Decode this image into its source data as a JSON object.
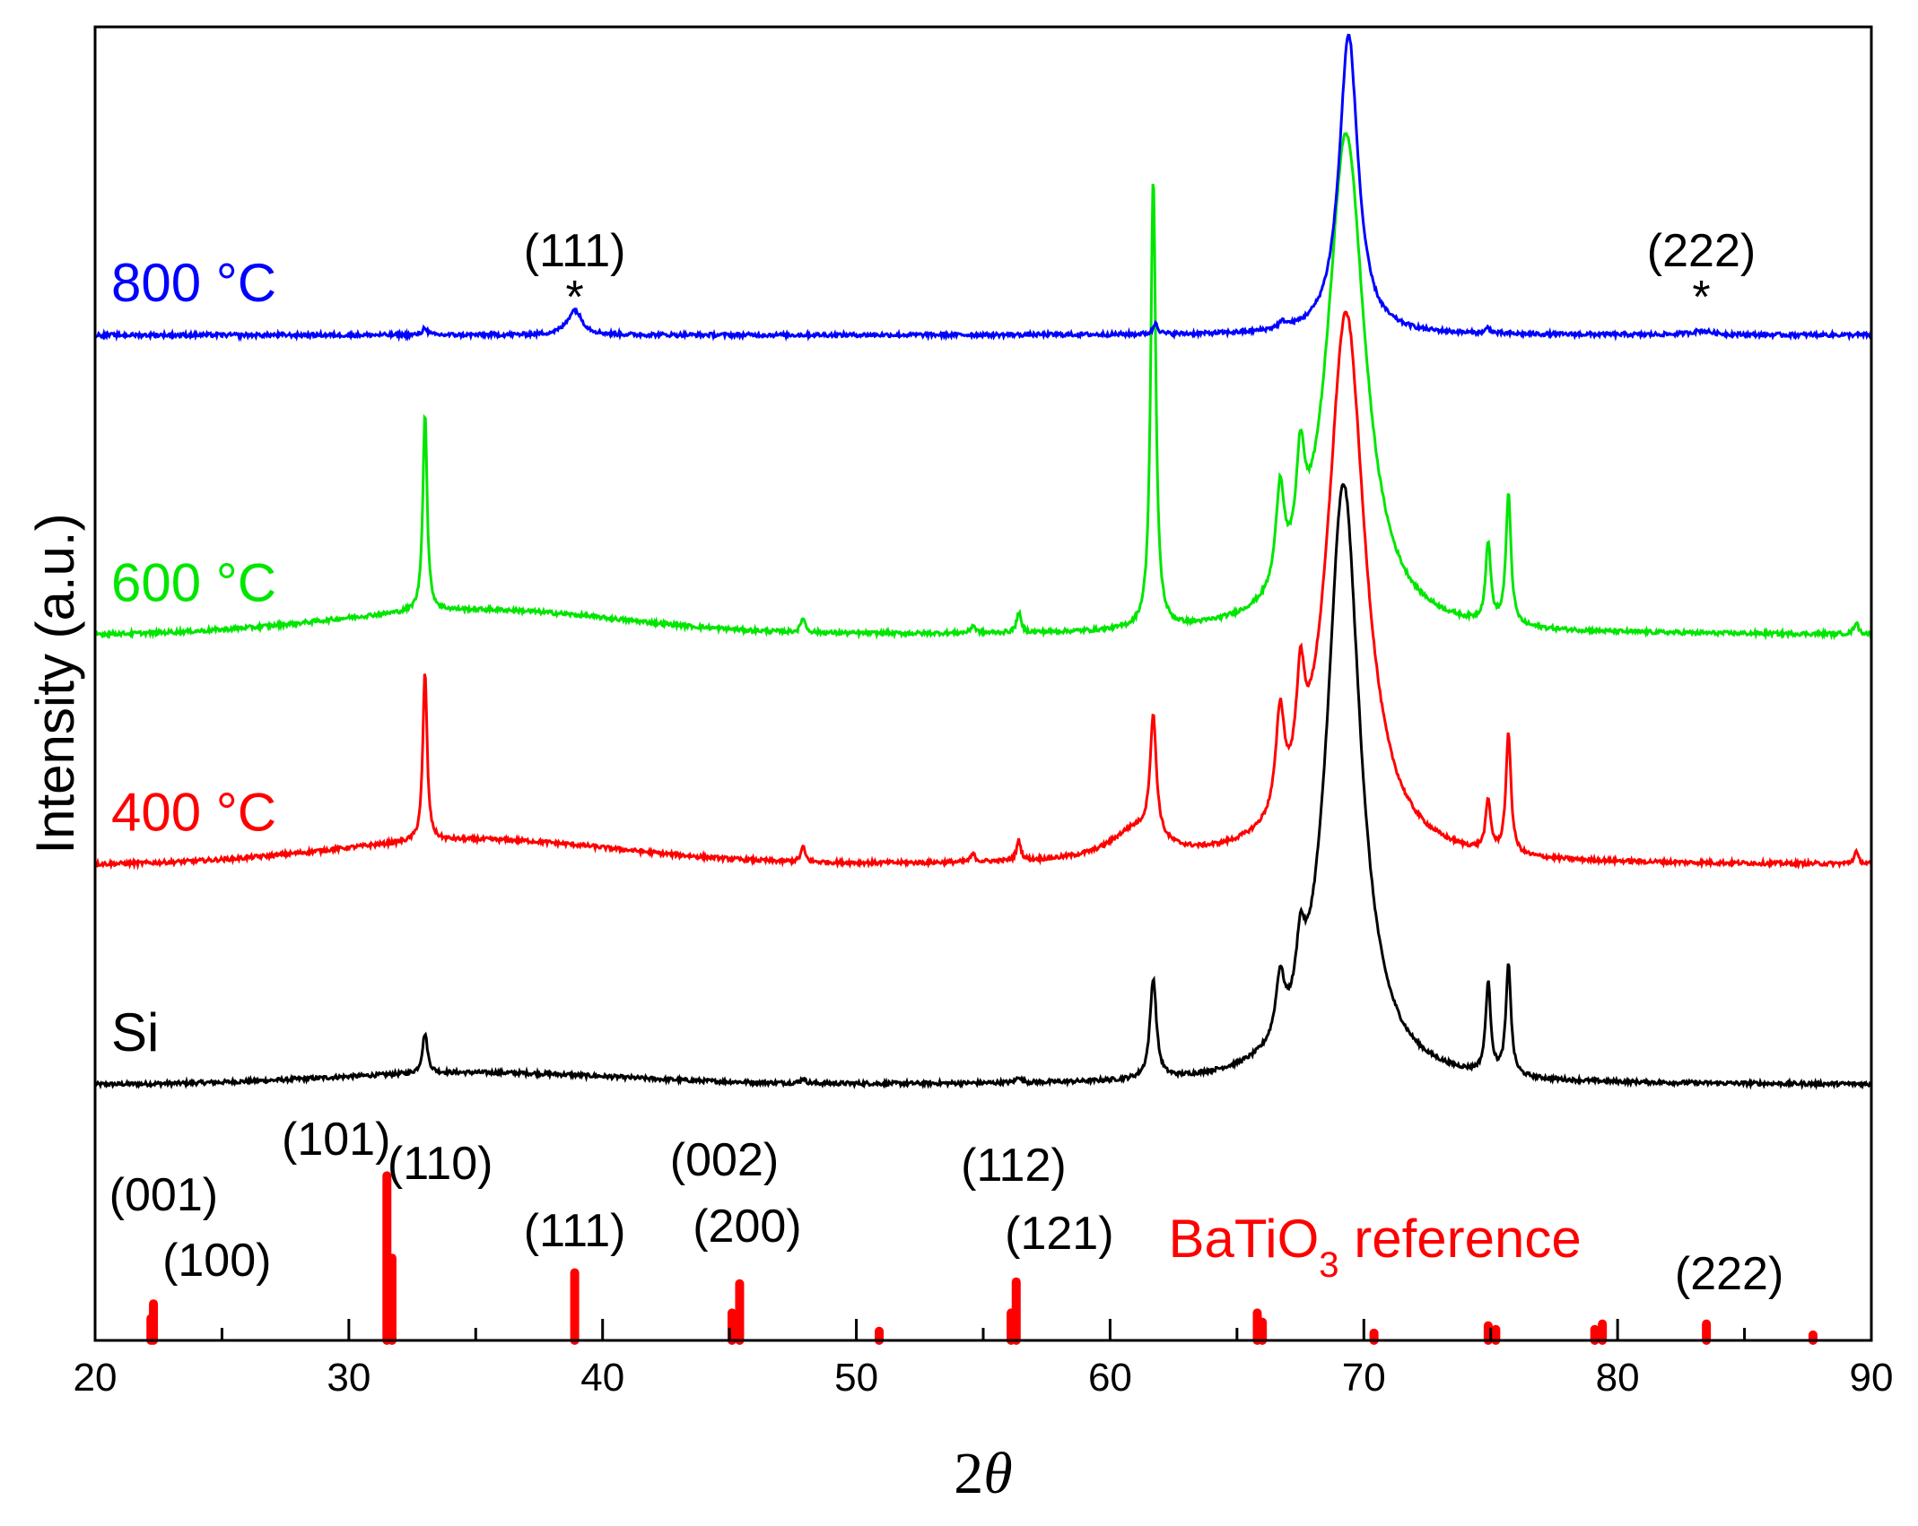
{
  "chart_data": {
    "type": "line",
    "title": "",
    "xlabel_prefix": "2",
    "xlabel_symbol": "θ",
    "ylabel": "Intensity (a.u.)",
    "xlim": [
      20,
      90
    ],
    "xticks": [
      20,
      30,
      40,
      50,
      60,
      70,
      80,
      90
    ],
    "tick_labels": [
      "20",
      "30",
      "40",
      "50",
      "60",
      "70",
      "80",
      "90"
    ],
    "y_ticks_shown": false,
    "colors": {
      "800 °C": "#0000ff",
      "600 °C": "#00e600",
      "400 °C": "#ff0000",
      "Si": "#000000",
      "reference": "#ff0000"
    },
    "series": [
      {
        "name": "Si",
        "label": "Si",
        "color": "#000000",
        "baseline": 0.0,
        "hump": {
          "center": 35,
          "width": 8,
          "height": 0.012
        },
        "peaks": [
          {
            "x": 33.0,
            "h": 0.04,
            "w": 0.12
          },
          {
            "x": 47.9,
            "h": 0.005,
            "w": 0.1
          },
          {
            "x": 56.4,
            "h": 0.006,
            "w": 0.1
          },
          {
            "x": 61.7,
            "h": 0.1,
            "w": 0.15
          },
          {
            "x": 66.7,
            "h": 0.06,
            "w": 0.2
          },
          {
            "x": 67.5,
            "h": 0.06,
            "w": 0.2
          },
          {
            "x": 69.2,
            "h": 0.6,
            "w": 0.8
          },
          {
            "x": 74.9,
            "h": 0.09,
            "w": 0.12
          },
          {
            "x": 75.7,
            "h": 0.11,
            "w": 0.12
          }
        ]
      },
      {
        "name": "400 °C",
        "label": "400 °C",
        "color": "#ff0000",
        "baseline": 0.22,
        "hump": {
          "center": 35,
          "width": 8,
          "height": 0.025
        },
        "peaks": [
          {
            "x": 33.0,
            "h": 0.17,
            "w": 0.1
          },
          {
            "x": 47.9,
            "h": 0.015,
            "w": 0.1
          },
          {
            "x": 54.6,
            "h": 0.008,
            "w": 0.1
          },
          {
            "x": 56.4,
            "h": 0.02,
            "w": 0.1
          },
          {
            "x": 61.0,
            "h": 0.03,
            "w": 1.2
          },
          {
            "x": 61.7,
            "h": 0.12,
            "w": 0.15
          },
          {
            "x": 66.7,
            "h": 0.1,
            "w": 0.2
          },
          {
            "x": 67.5,
            "h": 0.1,
            "w": 0.2
          },
          {
            "x": 69.3,
            "h": 0.55,
            "w": 0.9
          },
          {
            "x": 74.9,
            "h": 0.05,
            "w": 0.12
          },
          {
            "x": 75.7,
            "h": 0.12,
            "w": 0.12
          },
          {
            "x": 89.4,
            "h": 0.012,
            "w": 0.1
          }
        ]
      },
      {
        "name": "600 °C",
        "label": "600 °C",
        "color": "#00e600",
        "baseline": 0.45,
        "hump": {
          "center": 35,
          "width": 8,
          "height": 0.025
        },
        "peaks": [
          {
            "x": 33.0,
            "h": 0.2,
            "w": 0.1
          },
          {
            "x": 47.9,
            "h": 0.015,
            "w": 0.1
          },
          {
            "x": 54.6,
            "h": 0.008,
            "w": 0.1
          },
          {
            "x": 56.4,
            "h": 0.02,
            "w": 0.1
          },
          {
            "x": 61.7,
            "h": 0.45,
            "w": 0.12
          },
          {
            "x": 66.7,
            "h": 0.1,
            "w": 0.2
          },
          {
            "x": 67.5,
            "h": 0.1,
            "w": 0.2
          },
          {
            "x": 69.3,
            "h": 0.5,
            "w": 0.9
          },
          {
            "x": 74.9,
            "h": 0.08,
            "w": 0.12
          },
          {
            "x": 75.7,
            "h": 0.13,
            "w": 0.12
          },
          {
            "x": 89.4,
            "h": 0.012,
            "w": 0.1
          }
        ]
      },
      {
        "name": "800 °C",
        "label": "800 °C",
        "color": "#0000ff",
        "baseline": 0.75,
        "hump": {
          "center": 35,
          "width": 8,
          "height": 0.0
        },
        "peaks": [
          {
            "x": 33.0,
            "h": 0.008,
            "w": 0.1
          },
          {
            "x": 38.9,
            "h": 0.025,
            "w": 0.35
          },
          {
            "x": 61.8,
            "h": 0.012,
            "w": 0.1
          },
          {
            "x": 66.8,
            "h": 0.006,
            "w": 0.2
          },
          {
            "x": 69.4,
            "h": 0.3,
            "w": 0.45
          },
          {
            "x": 74.9,
            "h": 0.006,
            "w": 0.1
          },
          {
            "x": 83.3,
            "h": 0.004,
            "w": 0.5
          }
        ]
      }
    ],
    "annotations": [
      {
        "series": "800 °C",
        "x": 38.9,
        "label": "(111)",
        "marker": "*"
      },
      {
        "series": "800 °C",
        "x": 83.3,
        "label": "(222)",
        "marker": "*"
      }
    ],
    "reference": {
      "name": "BaTiO3 reference",
      "label_main": "BaTiO",
      "label_sub": "3",
      "label_tail": " reference",
      "color": "#ff0000",
      "sticks": [
        {
          "x": 22.2,
          "h": 0.12
        },
        {
          "x": 22.3,
          "h": 0.2
        },
        {
          "x": 31.5,
          "h": 0.9
        },
        {
          "x": 31.7,
          "h": 0.45
        },
        {
          "x": 38.9,
          "h": 0.37
        },
        {
          "x": 45.1,
          "h": 0.15
        },
        {
          "x": 45.4,
          "h": 0.31
        },
        {
          "x": 50.9,
          "h": 0.05
        },
        {
          "x": 56.1,
          "h": 0.15
        },
        {
          "x": 56.3,
          "h": 0.32
        },
        {
          "x": 65.8,
          "h": 0.15
        },
        {
          "x": 66.0,
          "h": 0.1
        },
        {
          "x": 70.4,
          "h": 0.04
        },
        {
          "x": 74.9,
          "h": 0.08
        },
        {
          "x": 75.2,
          "h": 0.06
        },
        {
          "x": 79.1,
          "h": 0.06
        },
        {
          "x": 79.4,
          "h": 0.09
        },
        {
          "x": 83.5,
          "h": 0.09
        },
        {
          "x": 87.7,
          "h": 0.03
        }
      ],
      "hkl_labels": [
        {
          "text": "(001)",
          "x": 22.7
        },
        {
          "text": "(100)",
          "x": 24.8
        },
        {
          "text": "(101)",
          "x": 29.5
        },
        {
          "text": "(110)",
          "x": 33.6
        },
        {
          "text": "(111)",
          "x": 38.9
        },
        {
          "text": "(002)",
          "x": 44.8
        },
        {
          "text": "(200)",
          "x": 45.7
        },
        {
          "text": "(112)",
          "x": 56.2
        },
        {
          "text": "(121)",
          "x": 58.0
        },
        {
          "text": "(222)",
          "x": 84.4
        }
      ]
    }
  }
}
